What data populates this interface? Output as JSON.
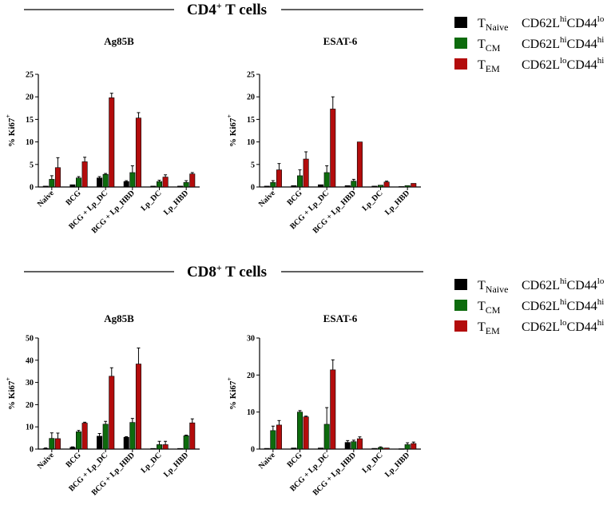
{
  "sections": [
    {
      "title": "CD4",
      "sup": "+",
      "rest": " T cells"
    },
    {
      "title": "CD8",
      "sup": "+",
      "rest": " T cells"
    }
  ],
  "legend": [
    {
      "cell": "T",
      "sub": "Naive",
      "m1": "CD62L",
      "s1": "hi",
      "m2": "CD44",
      "s2": "lo",
      "color": "#000000"
    },
    {
      "cell": "T",
      "sub": "CM",
      "m1": "CD62L",
      "s1": "hi",
      "m2": "CD44",
      "s2": "hi",
      "color": "#0d6b0d"
    },
    {
      "cell": "T",
      "sub": "EM",
      "m1": "CD62L",
      "s1": "lo",
      "m2": "CD44",
      "s2": "hi",
      "color": "#b30c0c"
    }
  ],
  "chart_data": [
    {
      "type": "bar",
      "title": "Ag85B",
      "section": "CD4+ T cells",
      "ylabel": "% Ki67",
      "ylabel_sup": "+",
      "ylim": [
        0,
        25
      ],
      "yticks": [
        "0",
        "5",
        "10",
        "15",
        "20",
        "25"
      ],
      "categories": [
        "Naive",
        "BCG",
        "BCG + Lp_DC",
        "BCG + Lp_HBD",
        "Lp_DC",
        "Lp_HBD"
      ],
      "series": [
        {
          "name": "TNaive",
          "values": [
            0.2,
            0.5,
            2.0,
            1.2,
            0.2,
            0.2
          ],
          "errors": [
            0.1,
            0.1,
            0.3,
            0.2,
            0.1,
            0.1
          ]
        },
        {
          "name": "TCM",
          "values": [
            1.7,
            2.0,
            2.8,
            3.2,
            1.2,
            1.0
          ],
          "errors": [
            0.8,
            0.3,
            0.2,
            1.5,
            0.3,
            0.4
          ]
        },
        {
          "name": "TEM",
          "values": [
            4.3,
            5.6,
            19.8,
            15.3,
            2.2,
            2.9
          ],
          "errors": [
            2.2,
            1.0,
            1.0,
            1.2,
            0.5,
            0.3
          ]
        }
      ]
    },
    {
      "type": "bar",
      "title": "ESAT-6",
      "section": "CD4+ T cells",
      "ylabel": "% Ki67",
      "ylabel_sup": "+",
      "ylim": [
        0,
        25
      ],
      "yticks": [
        "0",
        "5",
        "10",
        "15",
        "20",
        "25"
      ],
      "categories": [
        "Naive",
        "BCG",
        "BCG + Lp_DC",
        "BCG + Lp_HBD",
        "Lp_DC",
        "Lp_HBD"
      ],
      "series": [
        {
          "name": "TNaive",
          "values": [
            0.2,
            0.3,
            0.5,
            0.3,
            0.2,
            0.1
          ],
          "errors": [
            0.1,
            0.1,
            0.1,
            0.1,
            0.1,
            0.1
          ]
        },
        {
          "name": "TCM",
          "values": [
            1.0,
            2.5,
            3.2,
            1.3,
            0.4,
            0.3
          ],
          "errors": [
            0.4,
            1.3,
            1.5,
            0.4,
            0.1,
            0.1
          ]
        },
        {
          "name": "TEM",
          "values": [
            3.8,
            6.2,
            17.3,
            10.0,
            1.1,
            0.8
          ],
          "errors": [
            1.4,
            1.6,
            2.7,
            0.1,
            0.2,
            0.1
          ]
        }
      ]
    },
    {
      "type": "bar",
      "title": "Ag85B",
      "section": "CD8+ T cells",
      "ylabel": "% Ki67",
      "ylabel_sup": "+",
      "ylim": [
        0,
        50
      ],
      "yticks": [
        "0",
        "10",
        "20",
        "30",
        "40",
        "50"
      ],
      "categories": [
        "Naive",
        "BCG",
        "BCG + Lp_DC",
        "BCG + Lp_HBD",
        "Lp_DC",
        "Lp_HBD"
      ],
      "series": [
        {
          "name": "TNaive",
          "values": [
            0.3,
            0.8,
            5.8,
            5.3,
            0.3,
            0.3
          ],
          "errors": [
            0.2,
            0.2,
            1.2,
            0.3,
            0.1,
            0.1
          ]
        },
        {
          "name": "TCM",
          "values": [
            4.8,
            7.8,
            11.2,
            12.0,
            2.0,
            6.0
          ],
          "errors": [
            2.5,
            0.6,
            1.3,
            1.8,
            1.5,
            0.3
          ]
        },
        {
          "name": "TEM",
          "values": [
            4.7,
            11.7,
            32.8,
            38.3,
            2.0,
            11.8
          ],
          "errors": [
            2.5,
            0.4,
            3.8,
            7.2,
            1.5,
            1.8
          ]
        }
      ]
    },
    {
      "type": "bar",
      "title": "ESAT-6",
      "section": "CD8+ T cells",
      "ylabel": "% Ki67",
      "ylabel_sup": "+",
      "ylim": [
        0,
        30
      ],
      "yticks": [
        "0",
        "10",
        "20",
        "30"
      ],
      "categories": [
        "Naive",
        "BCG",
        "BCG + Lp_DC",
        "BCG + Lp_HBD",
        "Lp_DC",
        "Lp_HBD"
      ],
      "series": [
        {
          "name": "TNaive",
          "values": [
            0.2,
            0.3,
            0.3,
            1.8,
            0.2,
            0.1
          ],
          "errors": [
            0.1,
            0.1,
            0.1,
            0.5,
            0.1,
            0.1
          ]
        },
        {
          "name": "TCM",
          "values": [
            5.0,
            10.0,
            6.7,
            2.0,
            0.4,
            1.2
          ],
          "errors": [
            1.2,
            0.4,
            4.5,
            0.4,
            0.2,
            0.5
          ]
        },
        {
          "name": "TEM",
          "values": [
            6.5,
            8.7,
            21.4,
            2.8,
            0.3,
            1.5
          ],
          "errors": [
            1.2,
            0.2,
            2.7,
            0.5,
            0.1,
            0.4
          ]
        }
      ]
    }
  ]
}
